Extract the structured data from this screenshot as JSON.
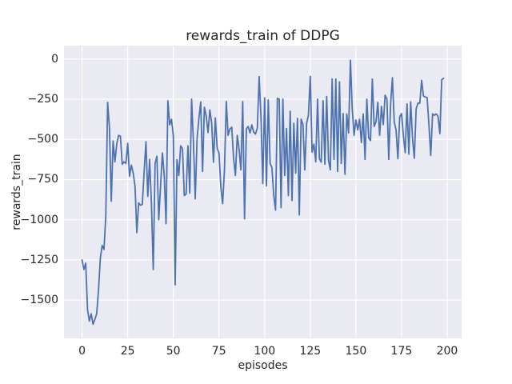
{
  "figure": {
    "title": "rewards_train of DDPG",
    "xlabel": "episodes",
    "ylabel": "rewards_train"
  },
  "chart_data": {
    "type": "line",
    "title": "rewards_train of DDPG",
    "xlabel": "episodes",
    "ylabel": "rewards_train",
    "grid": true,
    "legend": false,
    "xlim": [
      -9.9,
      207.9
    ],
    "ylim": [
      -1738,
      83
    ],
    "x_ticks": [
      {
        "value": 0,
        "label": "0"
      },
      {
        "value": 25,
        "label": "25"
      },
      {
        "value": 50,
        "label": "50"
      },
      {
        "value": 75,
        "label": "75"
      },
      {
        "value": 100,
        "label": "100"
      },
      {
        "value": 125,
        "label": "125"
      },
      {
        "value": 150,
        "label": "150"
      },
      {
        "value": 175,
        "label": "175"
      },
      {
        "value": 200,
        "label": "200"
      }
    ],
    "y_ticks": [
      {
        "value": 0,
        "label": "0"
      },
      {
        "value": -250,
        "label": "−250"
      },
      {
        "value": -500,
        "label": "−500"
      },
      {
        "value": -750,
        "label": "−750"
      },
      {
        "value": -1000,
        "label": "−1000"
      },
      {
        "value": -1250,
        "label": "−1250"
      },
      {
        "value": -1500,
        "label": "−1500"
      }
    ],
    "colors": {
      "plot_background": "#EAEAF2",
      "grid": "#FFFFFF",
      "line": "#4C72B0",
      "text": "#262626",
      "figure_background": "#FFFFFF"
    },
    "series": [
      {
        "name": "rewards_train",
        "x_start": 0,
        "x_step": 1,
        "values": [
          -1250,
          -1310,
          -1270,
          -1560,
          -1630,
          -1585,
          -1650,
          -1620,
          -1585,
          -1440,
          -1240,
          -1160,
          -1185,
          -975,
          -270,
          -430,
          -885,
          -510,
          -640,
          -530,
          -475,
          -480,
          -655,
          -640,
          -650,
          -525,
          -730,
          -660,
          -710,
          -790,
          -1080,
          -895,
          -910,
          -905,
          -700,
          -515,
          -855,
          -625,
          -900,
          -1310,
          -650,
          -605,
          -1000,
          -790,
          -585,
          -720,
          -1025,
          -260,
          -410,
          -375,
          -480,
          -1405,
          -627,
          -725,
          -540,
          -558,
          -850,
          -840,
          -540,
          -835,
          -250,
          -515,
          -870,
          -495,
          -370,
          -267,
          -700,
          -300,
          -355,
          -458,
          -317,
          -400,
          -642,
          -367,
          -555,
          -585,
          -792,
          -900,
          -690,
          -265,
          -475,
          -435,
          -425,
          -617,
          -725,
          -475,
          -560,
          -690,
          -265,
          -995,
          -435,
          -420,
          -460,
          -410,
          -455,
          -467,
          -430,
          -110,
          -360,
          -775,
          -242,
          -790,
          -255,
          -650,
          -675,
          -850,
          -940,
          -245,
          -250,
          -925,
          -250,
          -725,
          -433,
          -850,
          -325,
          -880,
          -400,
          -710,
          -370,
          -970,
          -375,
          -408,
          -690,
          -400,
          -350,
          -108,
          -580,
          -530,
          -640,
          -250,
          -620,
          -642,
          -260,
          -655,
          -233,
          -630,
          -690,
          -125,
          -625,
          -125,
          -700,
          -142,
          -650,
          -340,
          -717,
          -342,
          -460,
          -8,
          -310,
          -475,
          -380,
          -442,
          -375,
          -520,
          -342,
          -625,
          -250,
          -490,
          -508,
          -125,
          -420,
          -390,
          -270,
          -475,
          -295,
          -408,
          -225,
          -250,
          -625,
          -283,
          -117,
          -392,
          -442,
          -620,
          -360,
          -340,
          -475,
          -583,
          -280,
          -592,
          -267,
          -492,
          -617,
          -310,
          -275,
          -275,
          -133,
          -230,
          -237,
          -240,
          -408,
          -600,
          -342,
          -350,
          -342,
          -358,
          -465,
          -130,
          -120
        ]
      }
    ]
  }
}
